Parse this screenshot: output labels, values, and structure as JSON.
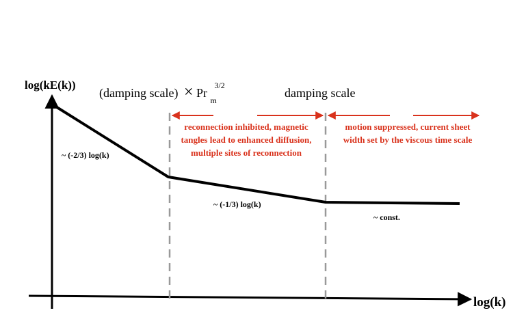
{
  "axes": {
    "y_label": "log(kE(k))",
    "x_label": "log(k)"
  },
  "scale_markers": {
    "left_prefix": "(damping scale)",
    "left_operator": "×",
    "left_base": "Pr",
    "left_subscript": "m",
    "left_superscript": "3/2",
    "right": "damping scale"
  },
  "regions": {
    "middle": [
      "reconnection inhibited, magnetic",
      "tangles lead to enhanced diffusion,",
      "multiple sites of reconnection"
    ],
    "right": [
      "motion suppressed, current sheet",
      "width set by the viscous time scale"
    ]
  },
  "slopes": {
    "first": "~ (-2/3) log(k)",
    "second": "~ (-1/3) log(k)",
    "third": "~ const."
  },
  "colors": {
    "annotation": "#d9321c",
    "curve": "#000000",
    "dashed": "#999999"
  }
}
